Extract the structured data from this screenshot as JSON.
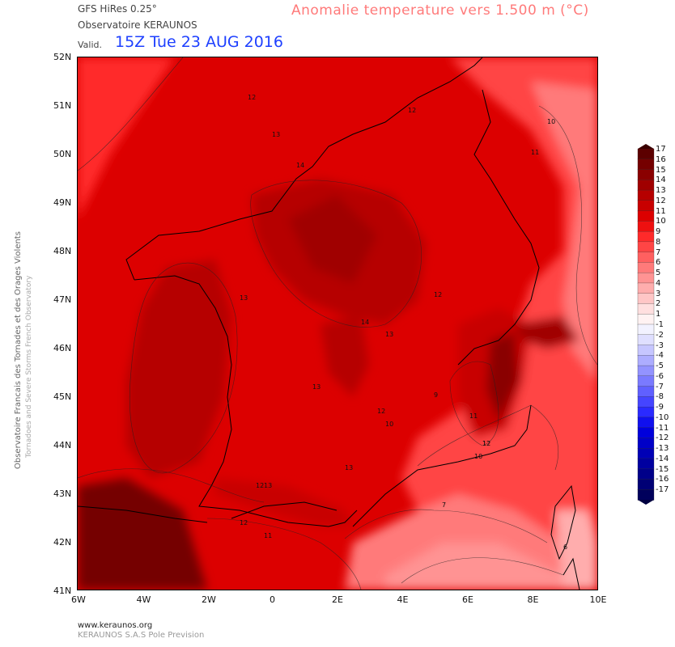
{
  "header": {
    "model": "GFS HiRes 0.25°",
    "observatory": "Observatoire KERAUNOS",
    "valid_label": "Valid.",
    "valid_time": "15Z Tue 23 AUG 2016",
    "title": "Anomalie temperature vers 1.500 m (°C)"
  },
  "side": {
    "line1": "Observatoire Francais des Tornades et des Orages Violents",
    "line2": "Tornadoes and Severe Storms French Observatory"
  },
  "axes": {
    "lat_labels": [
      "52N",
      "51N",
      "50N",
      "49N",
      "48N",
      "47N",
      "46N",
      "45N",
      "44N",
      "43N",
      "42N",
      "41N"
    ],
    "lon_labels": [
      "6W",
      "4W",
      "2W",
      "0",
      "2E",
      "4E",
      "6E",
      "8E",
      "10E"
    ]
  },
  "contour_labels": [
    "12",
    "12",
    "13",
    "14",
    "13",
    "13",
    "14",
    "13",
    "12",
    "10",
    "11",
    "12",
    "13",
    "12",
    "11",
    "13",
    "12",
    "11",
    "12",
    "10",
    "9",
    "12",
    "10",
    "7",
    "6"
  ],
  "legend": {
    "values": [
      "17",
      "16",
      "15",
      "14",
      "13",
      "12",
      "11",
      "10",
      "9",
      "8",
      "7",
      "6",
      "5",
      "4",
      "3",
      "2",
      "1",
      "-1",
      "-2",
      "-3",
      "-4",
      "-5",
      "-6",
      "-7",
      "-8",
      "-9",
      "-10",
      "-11",
      "-12",
      "-13",
      "-14",
      "-15",
      "-16",
      "-17"
    ],
    "colors": [
      "#5c0000",
      "#750000",
      "#8a0000",
      "#a00000",
      "#b60000",
      "#c80000",
      "#dc0000",
      "#ee1010",
      "#ff2a2a",
      "#ff4545",
      "#ff6060",
      "#ff7a7a",
      "#ff9393",
      "#ffadad",
      "#ffc6c6",
      "#ffdfdf",
      "#fff2f2",
      "#f2f2ff",
      "#dfdfff",
      "#c6c6ff",
      "#adadff",
      "#9393ff",
      "#7a7aff",
      "#6060ff",
      "#4545ff",
      "#2a2aff",
      "#1010ee",
      "#0000dc",
      "#0000c8",
      "#0000b6",
      "#0000a0",
      "#00008a",
      "#000075",
      "#00005c"
    ]
  },
  "footer": {
    "website": "www.keraunos.org",
    "company": "KERAUNOS S.A.S Pole Prevision"
  }
}
